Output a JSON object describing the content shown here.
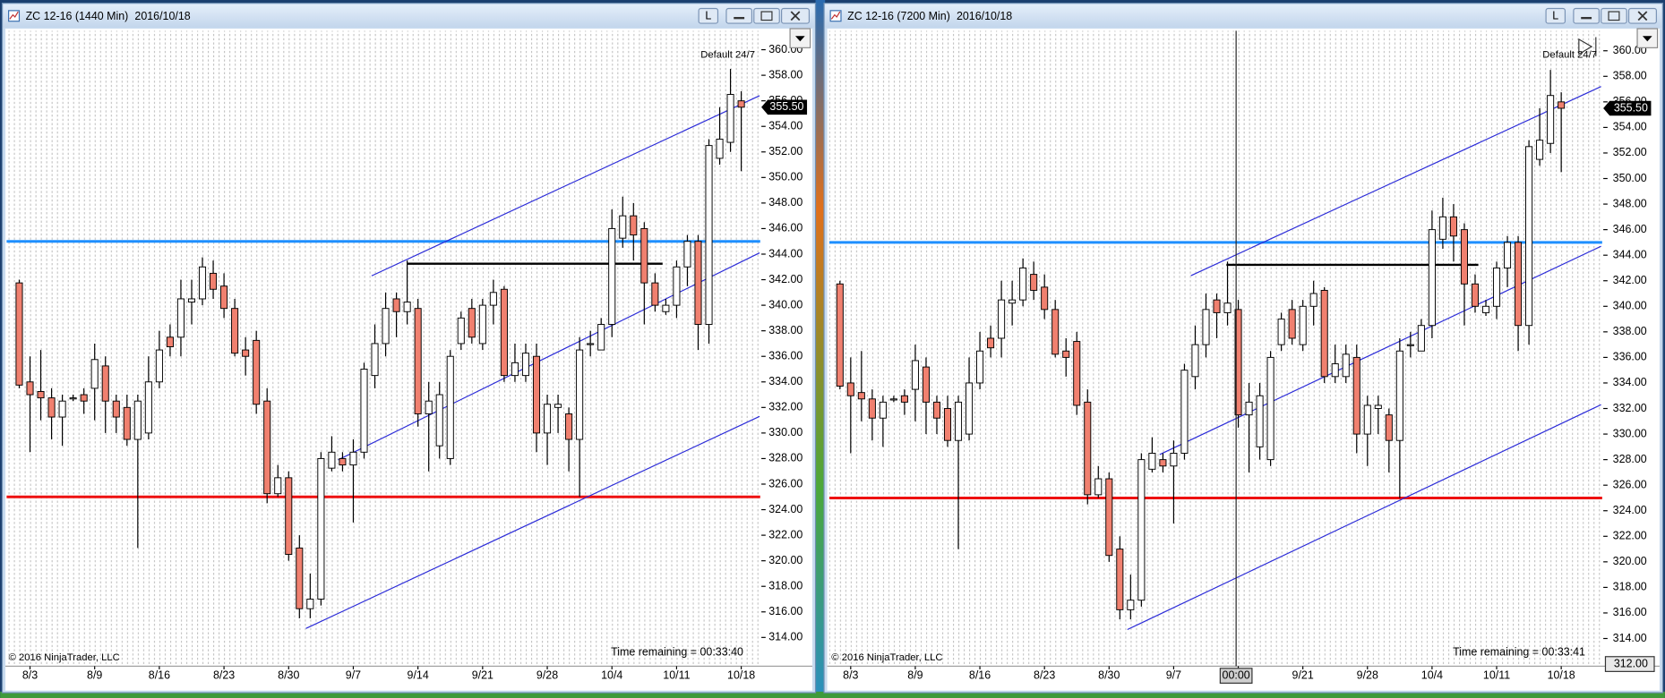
{
  "windows": [
    {
      "title": "ZC 12-16 (1440 Min)",
      "date": "2016/10/18",
      "layout_button": "L",
      "chart_data": {
        "type": "candlestick",
        "categories": [
          null,
          "8/3",
          null,
          null,
          null,
          null,
          null,
          "8/9",
          null,
          null,
          null,
          null,
          null,
          "8/16",
          null,
          null,
          null,
          null,
          null,
          "8/23",
          null,
          null,
          null,
          null,
          null,
          "8/30",
          null,
          null,
          null,
          null,
          null,
          "9/7",
          null,
          null,
          null,
          null,
          null,
          "9/14",
          null,
          null,
          null,
          null,
          null,
          "9/21",
          null,
          null,
          null,
          null,
          null,
          "9/28",
          null,
          null,
          null,
          null,
          null,
          "10/4",
          null,
          null,
          null,
          null,
          null,
          "10/11",
          null,
          null,
          null,
          null,
          null,
          "10/18"
        ],
        "open": [
          341.75,
          334,
          333.25,
          332.75,
          331.25,
          332.75,
          333,
          333.5,
          335.25,
          332.5,
          332,
          329.5,
          330,
          334,
          337.5,
          337.5,
          340.25,
          340.5,
          342.5,
          341.5,
          339.75,
          336.5,
          337.25,
          332.5,
          325.25,
          326.5,
          321,
          316.25,
          317,
          327.25,
          328,
          327.5,
          328.5,
          334.5,
          337,
          340.5,
          339.5,
          339.75,
          331.5,
          329,
          328,
          337,
          339.75,
          337,
          340,
          341.25,
          334.5,
          334.5,
          336,
          330,
          332,
          331.5,
          329.5,
          337,
          336.5,
          338.5,
          345.25,
          347,
          346,
          341.75,
          339.5,
          340,
          343,
          345,
          338.5,
          351.5,
          352.75,
          356
        ],
        "high": [
          342,
          336,
          336.5,
          333.5,
          333,
          333,
          333.5,
          337,
          336,
          333,
          333,
          333,
          336,
          338,
          338.5,
          342,
          342,
          343.75,
          343.5,
          342.5,
          340.5,
          337.5,
          338,
          333.5,
          327.5,
          327,
          322,
          319,
          328.5,
          329.75,
          328.5,
          329.5,
          335.5,
          338.5,
          341,
          341,
          343.5,
          340.5,
          334,
          334,
          336.5,
          339.5,
          340.5,
          340.5,
          342,
          341.5,
          337,
          337,
          337,
          333,
          333,
          332,
          337.5,
          338,
          339,
          347.5,
          348.5,
          348,
          346.5,
          342.5,
          340.5,
          343.5,
          345.5,
          345.5,
          353,
          355.5,
          358.5,
          356.75
        ],
        "low": [
          333.5,
          328.5,
          331,
          329.5,
          329,
          332.5,
          331.5,
          331,
          330,
          330,
          329,
          321,
          329.5,
          333.5,
          336,
          336,
          338.5,
          340,
          340.5,
          339,
          336,
          334.5,
          331.5,
          324.5,
          325,
          320,
          315.5,
          315.5,
          316.5,
          327,
          327,
          323,
          328,
          333.5,
          336,
          337.5,
          338.5,
          330.5,
          327,
          328,
          327.5,
          336.5,
          337,
          336.5,
          338.5,
          334,
          334,
          334,
          328.5,
          327.5,
          330,
          327,
          325,
          336,
          336.5,
          337.5,
          344.5,
          343.5,
          338.5,
          339.5,
          339.25,
          339,
          341.5,
          336.5,
          337,
          351,
          352,
          350.5
        ],
        "close": [
          333.75,
          333,
          332.75,
          331.25,
          332.5,
          332.75,
          332.5,
          335.75,
          332.5,
          331.25,
          329.5,
          332.5,
          334,
          336.5,
          336.75,
          340.5,
          340.5,
          343,
          341.25,
          339.75,
          336.25,
          336,
          332.25,
          325.25,
          326.5,
          320.5,
          316.25,
          317,
          328,
          328.5,
          327.5,
          328.5,
          335,
          337,
          339.75,
          339.5,
          340.25,
          331.5,
          332.5,
          333,
          336,
          339,
          337.5,
          340,
          341,
          334.5,
          335.5,
          336.25,
          330,
          332.25,
          332.25,
          329.5,
          336.5,
          337,
          338.5,
          346,
          347,
          345.5,
          341.75,
          340,
          340,
          343,
          345,
          338.5,
          352.5,
          353,
          356.5,
          355.5
        ],
        "up_color": "#ffffff",
        "down_color": "#f0806f",
        "ylim": [
          312,
          361.4
        ],
        "yticks": [
          {
            "value": 314,
            "label": "314.00"
          },
          {
            "value": 316,
            "label": "316.00"
          },
          {
            "value": 318,
            "label": "318.00"
          },
          {
            "value": 320,
            "label": "320.00"
          },
          {
            "value": 322,
            "label": "322.00"
          },
          {
            "value": 324,
            "label": "324.00"
          },
          {
            "value": 326,
            "label": "326.00"
          },
          {
            "value": 328,
            "label": "328.00"
          },
          {
            "value": 330,
            "label": "330.00"
          },
          {
            "value": 332,
            "label": "332.00"
          },
          {
            "value": 334,
            "label": "334.00"
          },
          {
            "value": 336,
            "label": "336.00"
          },
          {
            "value": 338,
            "label": "338.00"
          },
          {
            "value": 340,
            "label": "340.00"
          },
          {
            "value": 342,
            "label": "342.00"
          },
          {
            "value": 344,
            "label": "344.00"
          },
          {
            "value": 346,
            "label": "346.00"
          },
          {
            "value": 348,
            "label": "348.00"
          },
          {
            "value": 350,
            "label": "350.00"
          },
          {
            "value": 352,
            "label": "352.00"
          },
          {
            "value": 354,
            "label": "354.00"
          },
          {
            "value": 356,
            "label": "356.00"
          },
          {
            "value": 358,
            "label": "358.00"
          },
          {
            "value": 360,
            "label": "360.00"
          }
        ],
        "session": "Default 24/7",
        "copyright": "© 2016 NinjaTrader, LLC",
        "time_remaining": "Time remaining = 00:33:40",
        "last_price": {
          "value": 355.5,
          "label": "355.50"
        },
        "drawings": [
          {
            "type": "horizontal",
            "y": 345,
            "color": "#1e8fff"
          },
          {
            "type": "horizontal",
            "y": 325,
            "color": "#ee1111"
          },
          {
            "type": "segment",
            "x": [
              36,
              59.7
            ],
            "y": [
              343.25,
              343.25
            ],
            "color": "#000000"
          },
          {
            "type": "segment",
            "x": [
              32.7,
              68.7
            ],
            "y": [
              342.3,
              356.4
            ],
            "color": "#2b2bd8"
          },
          {
            "type": "segment",
            "x": [
              29.6,
              68.7
            ],
            "y": [
              327.9,
              344.1
            ],
            "color": "#2b2bd8"
          },
          {
            "type": "segment",
            "x": [
              26.6,
              68.7
            ],
            "y": [
              314.7,
              331.3
            ],
            "color": "#2b2bd8"
          }
        ]
      }
    },
    {
      "title": "ZC 12-16 (7200 Min)",
      "date": "2016/10/18",
      "layout_button": "L",
      "chart_data": {
        "type": "candlestick",
        "categories": [
          null,
          "8/3",
          null,
          null,
          null,
          null,
          null,
          "8/9",
          null,
          null,
          null,
          null,
          null,
          "8/16",
          null,
          null,
          null,
          null,
          null,
          "8/23",
          null,
          null,
          null,
          null,
          null,
          "8/30",
          null,
          null,
          null,
          null,
          null,
          "9/7",
          null,
          null,
          null,
          null,
          null,
          "9/14",
          null,
          null,
          null,
          null,
          null,
          "9/21",
          null,
          null,
          null,
          null,
          null,
          "9/28",
          null,
          null,
          null,
          null,
          null,
          "10/4",
          null,
          null,
          null,
          null,
          null,
          "10/11",
          null,
          null,
          null,
          null,
          null,
          "10/18"
        ],
        "open": [
          341.75,
          334,
          333.25,
          332.75,
          331.25,
          332.75,
          333,
          333.5,
          335.25,
          332.5,
          332,
          329.5,
          330,
          334,
          337.5,
          337.5,
          340.25,
          340.5,
          342.5,
          341.5,
          339.75,
          336.5,
          337.25,
          332.5,
          325.25,
          326.5,
          321,
          316.25,
          317,
          327.25,
          328,
          327.5,
          328.5,
          334.5,
          337,
          340.5,
          339.5,
          339.75,
          331.5,
          329,
          328,
          337,
          339.75,
          337,
          340,
          341.25,
          334.5,
          334.5,
          336,
          330,
          332,
          331.5,
          329.5,
          337,
          336.5,
          338.5,
          345.25,
          347,
          346,
          341.75,
          339.5,
          340,
          343,
          345,
          338.5,
          351.5,
          352.75,
          356
        ],
        "high": [
          342,
          336,
          336.5,
          333.5,
          333,
          333,
          333.5,
          337,
          336,
          333,
          333,
          333,
          336,
          338,
          338.5,
          342,
          342,
          343.75,
          343.5,
          342.5,
          340.5,
          337.5,
          338,
          333.5,
          327.5,
          327,
          322,
          319,
          328.5,
          329.75,
          328.5,
          329.5,
          335.5,
          338.5,
          341,
          341,
          343.5,
          340.5,
          334,
          334,
          336.5,
          339.5,
          340.5,
          340.5,
          342,
          341.5,
          337,
          337,
          337,
          333,
          333,
          332,
          337.5,
          338,
          339,
          347.5,
          348.5,
          348,
          346.5,
          342.5,
          340.5,
          343.5,
          345.5,
          345.5,
          353,
          355.5,
          358.5,
          356.75
        ],
        "low": [
          333.5,
          328.5,
          331,
          329.5,
          329,
          332.5,
          331.5,
          331,
          330,
          330,
          329,
          321,
          329.5,
          333.5,
          336,
          336,
          338.5,
          340,
          340.5,
          339,
          336,
          334.5,
          331.5,
          324.5,
          325,
          320,
          315.5,
          315.5,
          316.5,
          327,
          327,
          323,
          328,
          333.5,
          336,
          337.5,
          338.5,
          330.5,
          327,
          328,
          327.5,
          336.5,
          337,
          336.5,
          338.5,
          334,
          334,
          334,
          328.5,
          327.5,
          330,
          327,
          325,
          336,
          336.5,
          337.5,
          344.5,
          343.5,
          338.5,
          339.5,
          339.25,
          339,
          341.5,
          336.5,
          337,
          351,
          352,
          350.5
        ],
        "close": [
          333.75,
          333,
          332.75,
          331.25,
          332.5,
          332.75,
          332.5,
          335.75,
          332.5,
          331.25,
          329.5,
          332.5,
          334,
          336.5,
          336.75,
          340.5,
          340.5,
          343,
          341.25,
          339.75,
          336.25,
          336,
          332.25,
          325.25,
          326.5,
          320.5,
          316.25,
          317,
          328,
          328.5,
          327.5,
          328.5,
          335,
          337,
          339.75,
          339.5,
          340.25,
          331.5,
          332.5,
          333,
          336,
          339,
          337.5,
          340,
          341,
          334.5,
          335.5,
          336.25,
          330,
          332.25,
          332.25,
          329.5,
          336.5,
          337,
          338.5,
          346,
          347,
          345.5,
          341.75,
          340,
          340,
          343,
          345,
          338.5,
          352.5,
          353,
          356.5,
          355.5
        ],
        "up_color": "#ffffff",
        "down_color": "#f0806f",
        "ylim": [
          312,
          361.4
        ],
        "yticks": [
          {
            "value": 314,
            "label": "314.00"
          },
          {
            "value": 316,
            "label": "316.00"
          },
          {
            "value": 318,
            "label": "318.00"
          },
          {
            "value": 320,
            "label": "320.00"
          },
          {
            "value": 322,
            "label": "322.00"
          },
          {
            "value": 324,
            "label": "324.00"
          },
          {
            "value": 326,
            "label": "326.00"
          },
          {
            "value": 328,
            "label": "328.00"
          },
          {
            "value": 330,
            "label": "330.00"
          },
          {
            "value": 332,
            "label": "332.00"
          },
          {
            "value": 334,
            "label": "334.00"
          },
          {
            "value": 336,
            "label": "336.00"
          },
          {
            "value": 338,
            "label": "338.00"
          },
          {
            "value": 340,
            "label": "340.00"
          },
          {
            "value": 342,
            "label": "342.00"
          },
          {
            "value": 344,
            "label": "344.00"
          },
          {
            "value": 346,
            "label": "346.00"
          },
          {
            "value": 348,
            "label": "348.00"
          },
          {
            "value": 350,
            "label": "350.00"
          },
          {
            "value": 352,
            "label": "352.00"
          },
          {
            "value": 354,
            "label": "354.00"
          },
          {
            "value": 356,
            "label": "356.00"
          },
          {
            "value": 358,
            "label": "358.00"
          },
          {
            "value": 360,
            "label": "360.00"
          }
        ],
        "session": "Default 24/7",
        "copyright": "© 2016 NinjaTrader, LLC",
        "time_remaining": "Time remaining = 00:33:41",
        "last_price": {
          "value": 355.5,
          "label": "355.50"
        },
        "crosshair": {
          "x": 36.8,
          "x_label": "00:00",
          "y": {
            "value": 312,
            "label": "312.00"
          }
        },
        "drawings": [
          {
            "type": "horizontal",
            "y": 345,
            "color": "#1e8fff"
          },
          {
            "type": "horizontal",
            "y": 325,
            "color": "#ee1111"
          },
          {
            "type": "segment",
            "x": [
              35.9,
              59.3
            ],
            "y": [
              343.25,
              343.25
            ],
            "color": "#000000"
          },
          {
            "type": "segment",
            "x": [
              32.6,
              70.7
            ],
            "y": [
              342.4,
              357.2
            ],
            "color": "#2b2bd8"
          },
          {
            "type": "segment",
            "x": [
              29.7,
              70.7
            ],
            "y": [
              328.4,
              344.7
            ],
            "color": "#2b2bd8"
          },
          {
            "type": "segment",
            "x": [
              26.7,
              70.7
            ],
            "y": [
              314.7,
              332.3
            ],
            "color": "#2b2bd8"
          }
        ]
      }
    }
  ]
}
